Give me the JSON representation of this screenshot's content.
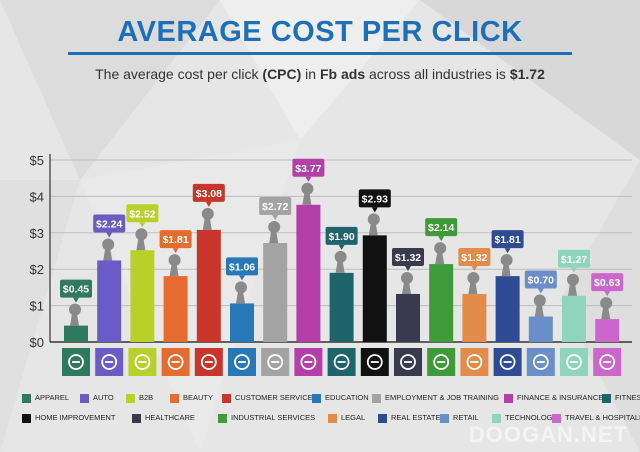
{
  "title": "AVERAGE COST PER CLICK",
  "subtitle": {
    "pre": "The average cost per click ",
    "b1": "(CPC)",
    "mid": " in ",
    "b2": "Fb ads",
    "mid2": " across all industries is ",
    "b3": "$1.72"
  },
  "watermark": "DOOGAN.NET",
  "chart_data": {
    "type": "bar",
    "title": "AVERAGE COST PER CLICK",
    "ylim": [
      0,
      5
    ],
    "yticks": [
      "$0",
      "$1",
      "$2",
      "$3",
      "$4",
      "$5"
    ],
    "grid": true,
    "legend_position": "bottom",
    "categories": [
      "Apparel",
      "Auto",
      "B2B",
      "Beauty",
      "Customer Services",
      "Education",
      "Employment & Job Training",
      "Finance & Insurance",
      "Fitness",
      "Home Improvement",
      "Healthcare",
      "Industrial Services",
      "Legal",
      "Real Estate",
      "Retail",
      "Technology",
      "Travel & Hospitality"
    ],
    "values": [
      0.45,
      2.24,
      2.52,
      1.81,
      3.08,
      1.06,
      2.72,
      3.77,
      1.9,
      2.93,
      1.32,
      2.14,
      1.32,
      1.81,
      0.7,
      1.27,
      0.63
    ],
    "labels": [
      "$0.45",
      "$2.24",
      "$2.52",
      "$1.81",
      "$3.08",
      "$1.06",
      "$2.72",
      "$3.77",
      "$1.90",
      "$2.93",
      "$1.32",
      "$2.14",
      "$1.32",
      "$1.81",
      "$0.70",
      "$1.27",
      "$0.63"
    ],
    "colors": [
      "#2f7a5e",
      "#6a5bc5",
      "#b7d12a",
      "#e46c2e",
      "#c8352a",
      "#2878b8",
      "#a3a3a3",
      "#b53fa8",
      "#20646b",
      "#111111",
      "#3a3a4e",
      "#3f9a3a",
      "#e38b4b",
      "#2f4b93",
      "#6a8ec8",
      "#8fd5bd",
      "#cc66cc"
    ],
    "icons": [
      "tshirt-icon",
      "car-icon",
      "handshake-icon",
      "mirror-icon",
      "headset-icon",
      "book-icon",
      "briefcase-icon",
      "money-bag-icon",
      "arm-icon",
      "tools-icon",
      "first-aid-icon",
      "factory-icon",
      "gavel-icon",
      "house-icon",
      "tag-icon",
      "laptop-icon",
      "map-icon"
    ]
  }
}
